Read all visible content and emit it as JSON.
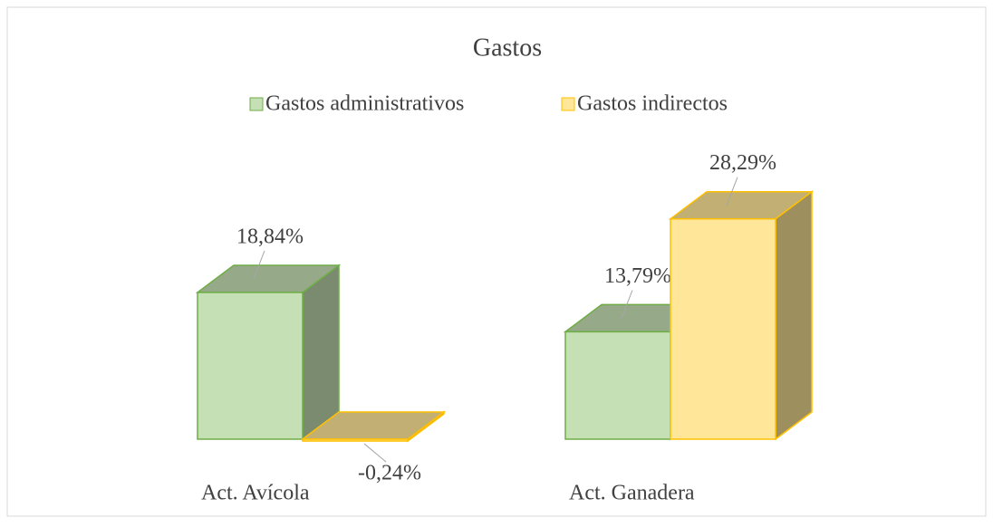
{
  "chart_data": {
    "type": "bar3d",
    "title": "Gastos",
    "categories": [
      "Act. Avícola",
      "Act. Ganadera"
    ],
    "series": [
      {
        "name": "Gastos administrativos",
        "color": "#c5e0b4",
        "stroke": "#70ad47",
        "values": [
          18.84,
          13.79
        ],
        "value_labels": [
          "18,84%",
          "13,79%"
        ]
      },
      {
        "name": "Gastos indirectos",
        "color": "#ffe699",
        "stroke": "#ffc000",
        "values": [
          -0.24,
          28.29
        ],
        "value_labels": [
          "-0,24%",
          "28,29%"
        ]
      }
    ],
    "legend": "top"
  }
}
